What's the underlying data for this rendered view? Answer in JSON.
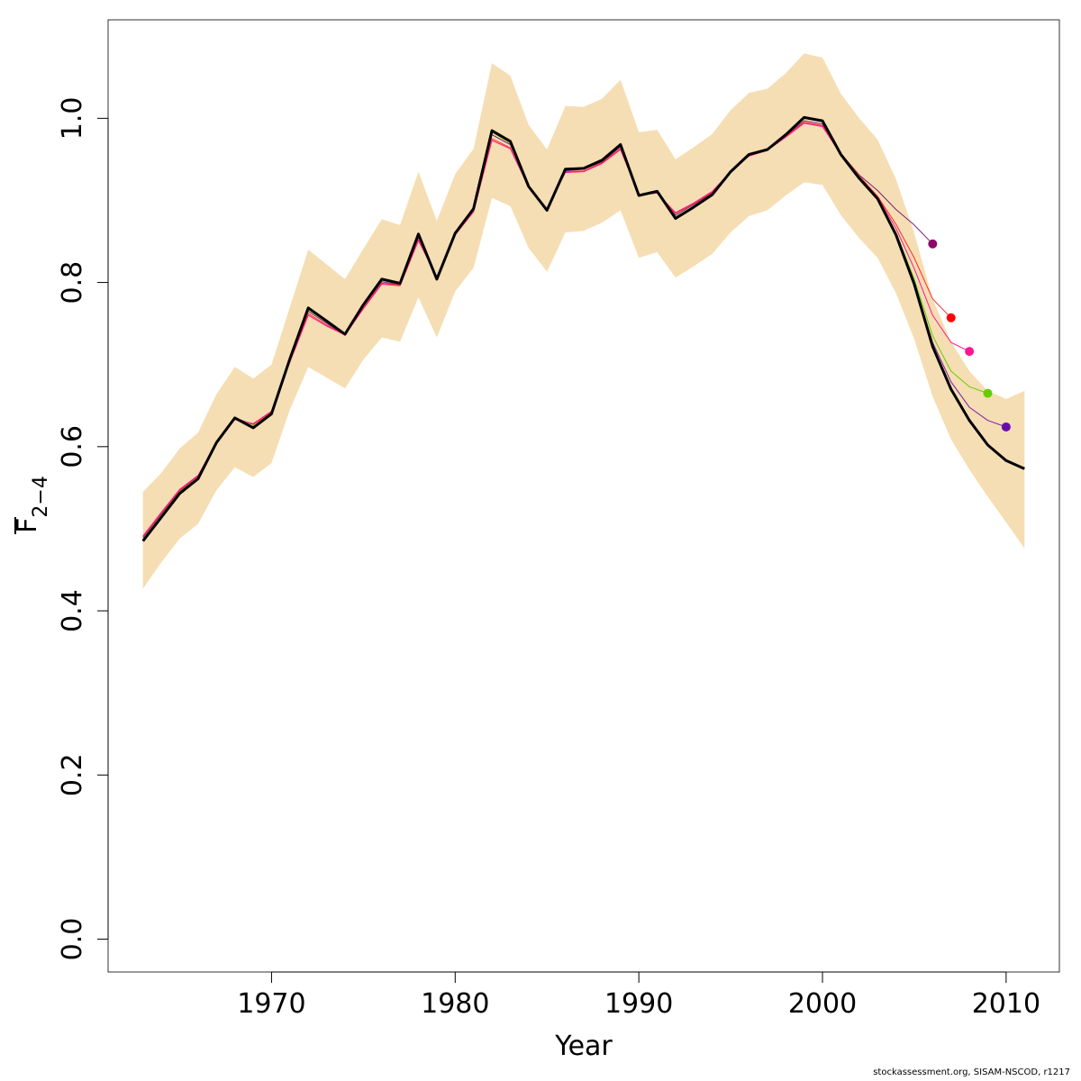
{
  "chart_data": {
    "type": "line",
    "xlabel": "Year",
    "ylabel": "F",
    "ylabel_subscript": "2−4",
    "xlim": [
      1961.1,
      2012.9
    ],
    "ylim": [
      -0.04,
      1.12
    ],
    "x_ticks": [
      1970,
      1980,
      1990,
      2000,
      2010
    ],
    "y_ticks": [
      "0.0",
      "0.2",
      "0.4",
      "0.6",
      "0.8",
      "1.0"
    ],
    "grid": false,
    "legend": "none",
    "confidence_band": {
      "color": "#F5DEB3",
      "x": [
        1963,
        1964,
        1965,
        1966,
        1967,
        1968,
        1969,
        1970,
        1971,
        1972,
        1973,
        1974,
        1975,
        1976,
        1977,
        1978,
        1979,
        1980,
        1981,
        1982,
        1983,
        1984,
        1985,
        1986,
        1987,
        1988,
        1989,
        1990,
        1991,
        1992,
        1993,
        1994,
        1995,
        1996,
        1997,
        1998,
        1999,
        2000,
        2001,
        2002,
        2003,
        2004,
        2005,
        2006,
        2007,
        2008,
        2009,
        2010,
        2011
      ],
      "upper": [
        0.545,
        0.568,
        0.598,
        0.617,
        0.664,
        0.697,
        0.683,
        0.7,
        0.77,
        0.84,
        0.822,
        0.804,
        0.841,
        0.877,
        0.87,
        0.935,
        0.875,
        0.932,
        0.963,
        1.067,
        1.052,
        0.992,
        0.962,
        1.015,
        1.014,
        1.024,
        1.047,
        0.983,
        0.986,
        0.95,
        0.965,
        0.981,
        1.01,
        1.031,
        1.036,
        1.055,
        1.079,
        1.074,
        1.03,
        1.0,
        0.974,
        0.926,
        0.86,
        0.78,
        0.728,
        0.692,
        0.668,
        0.658,
        0.668
      ],
      "lower": [
        0.427,
        0.459,
        0.488,
        0.506,
        0.547,
        0.575,
        0.563,
        0.58,
        0.645,
        0.697,
        0.684,
        0.671,
        0.706,
        0.733,
        0.728,
        0.782,
        0.733,
        0.789,
        0.818,
        0.903,
        0.893,
        0.842,
        0.813,
        0.861,
        0.863,
        0.873,
        0.888,
        0.83,
        0.837,
        0.806,
        0.82,
        0.835,
        0.861,
        0.881,
        0.888,
        0.906,
        0.922,
        0.919,
        0.882,
        0.854,
        0.83,
        0.787,
        0.731,
        0.661,
        0.609,
        0.572,
        0.539,
        0.508,
        0.476
      ]
    },
    "series": [
      {
        "color": "#000000",
        "width": 3,
        "x": [
          1963,
          1964,
          1965,
          1966,
          1967,
          1968,
          1969,
          1970,
          1971,
          1972,
          1973,
          1974,
          1975,
          1976,
          1977,
          1978,
          1979,
          1980,
          1981,
          1982,
          1983,
          1984,
          1985,
          1986,
          1987,
          1988,
          1989,
          1990,
          1991,
          1992,
          1993,
          1994,
          1995,
          1996,
          1997,
          1998,
          1999,
          2000,
          2001,
          2002,
          2003,
          2004,
          2005,
          2006,
          2007,
          2008,
          2009,
          2010,
          2011
        ],
        "values": [
          0.485,
          0.514,
          0.543,
          0.561,
          0.605,
          0.635,
          0.623,
          0.64,
          0.707,
          0.769,
          0.753,
          0.737,
          0.773,
          0.804,
          0.799,
          0.859,
          0.804,
          0.86,
          0.89,
          0.985,
          0.972,
          0.917,
          0.888,
          0.938,
          0.939,
          0.949,
          0.968,
          0.906,
          0.911,
          0.878,
          0.892,
          0.907,
          0.935,
          0.956,
          0.962,
          0.98,
          1.001,
          0.997,
          0.956,
          0.927,
          0.902,
          0.858,
          0.798,
          0.722,
          0.67,
          0.632,
          0.602,
          0.583,
          0.573
        ]
      },
      {
        "color": "#7B1F77",
        "width": 1,
        "x": [
          1963,
          1964,
          1965,
          1966,
          1967,
          1968,
          1969,
          1970,
          1971,
          1972,
          1973,
          1974,
          1975,
          1976,
          1977,
          1978,
          1979,
          1980,
          1981,
          1982,
          1983,
          1984,
          1985,
          1986,
          1987,
          1988,
          1989,
          1990,
          1991,
          1992,
          1993,
          1994,
          1995,
          1996,
          1997,
          1998,
          1999,
          2000,
          2001,
          2002,
          2003,
          2004,
          2005,
          2006
        ],
        "values": [
          0.489,
          0.518,
          0.546,
          0.564,
          0.606,
          0.635,
          0.627,
          0.642,
          0.706,
          0.765,
          0.75,
          0.736,
          0.771,
          0.801,
          0.797,
          0.855,
          0.806,
          0.859,
          0.889,
          0.98,
          0.968,
          0.917,
          0.889,
          0.936,
          0.938,
          0.947,
          0.965,
          0.907,
          0.909,
          0.882,
          0.895,
          0.909,
          0.935,
          0.955,
          0.962,
          0.979,
          0.997,
          0.993,
          0.957,
          0.931,
          0.912,
          0.889,
          0.87,
          0.847
        ],
        "endpoint": {
          "x": 2006,
          "y": 0.847,
          "color": "#8B0A6B"
        }
      },
      {
        "color": "#FF2A2A",
        "width": 1,
        "x": [
          1963,
          1964,
          1965,
          1966,
          1967,
          1968,
          1969,
          1970,
          1971,
          1972,
          1973,
          1974,
          1975,
          1976,
          1977,
          1978,
          1979,
          1980,
          1981,
          1982,
          1983,
          1984,
          1985,
          1986,
          1987,
          1988,
          1989,
          1990,
          1991,
          1992,
          1993,
          1994,
          1995,
          1996,
          1997,
          1998,
          1999,
          2000,
          2001,
          2002,
          2003,
          2004,
          2005,
          2006,
          2007
        ],
        "values": [
          0.49,
          0.519,
          0.547,
          0.564,
          0.605,
          0.634,
          0.627,
          0.642,
          0.704,
          0.762,
          0.748,
          0.736,
          0.769,
          0.799,
          0.797,
          0.852,
          0.806,
          0.858,
          0.887,
          0.975,
          0.964,
          0.916,
          0.89,
          0.935,
          0.936,
          0.946,
          0.963,
          0.907,
          0.909,
          0.884,
          0.896,
          0.91,
          0.935,
          0.955,
          0.962,
          0.978,
          0.995,
          0.991,
          0.957,
          0.93,
          0.905,
          0.871,
          0.83,
          0.78,
          0.757
        ],
        "endpoint": {
          "x": 2007,
          "y": 0.757,
          "color": "#FF0000"
        }
      },
      {
        "color": "#FF1493",
        "width": 1,
        "x": [
          1963,
          1964,
          1965,
          1966,
          1967,
          1968,
          1969,
          1970,
          1971,
          1972,
          1973,
          1974,
          1975,
          1976,
          1977,
          1978,
          1979,
          1980,
          1981,
          1982,
          1983,
          1984,
          1985,
          1986,
          1987,
          1988,
          1989,
          1990,
          1991,
          1992,
          1993,
          1994,
          1995,
          1996,
          1997,
          1998,
          1999,
          2000,
          2001,
          2002,
          2003,
          2004,
          2005,
          2006,
          2007,
          2008
        ],
        "values": [
          0.491,
          0.52,
          0.548,
          0.565,
          0.605,
          0.633,
          0.628,
          0.643,
          0.703,
          0.76,
          0.747,
          0.736,
          0.768,
          0.798,
          0.796,
          0.851,
          0.807,
          0.858,
          0.886,
          0.973,
          0.963,
          0.916,
          0.89,
          0.934,
          0.935,
          0.945,
          0.962,
          0.907,
          0.909,
          0.885,
          0.897,
          0.911,
          0.935,
          0.954,
          0.961,
          0.977,
          0.994,
          0.99,
          0.956,
          0.929,
          0.904,
          0.866,
          0.817,
          0.76,
          0.727,
          0.716
        ],
        "endpoint": {
          "x": 2008,
          "y": 0.716,
          "color": "#FF1493"
        }
      },
      {
        "color": "#66CD00",
        "width": 1,
        "x": [
          1963,
          1964,
          1965,
          1966,
          1967,
          1968,
          1969,
          1970,
          1971,
          1972,
          1973,
          1974,
          1975,
          1976,
          1977,
          1978,
          1979,
          1980,
          1981,
          1982,
          1983,
          1984,
          1985,
          1986,
          1987,
          1988,
          1989,
          1990,
          1991,
          1992,
          1993,
          1994,
          1995,
          1996,
          1997,
          1998,
          1999,
          2000,
          2001,
          2002,
          2003,
          2004,
          2005,
          2006,
          2007,
          2008,
          2009
        ],
        "values": [
          0.487,
          0.516,
          0.545,
          0.562,
          0.605,
          0.635,
          0.625,
          0.641,
          0.706,
          0.767,
          0.752,
          0.737,
          0.772,
          0.803,
          0.798,
          0.857,
          0.805,
          0.86,
          0.89,
          0.983,
          0.97,
          0.917,
          0.888,
          0.937,
          0.938,
          0.948,
          0.967,
          0.906,
          0.911,
          0.88,
          0.893,
          0.908,
          0.935,
          0.956,
          0.962,
          0.98,
          1.0,
          0.996,
          0.957,
          0.929,
          0.903,
          0.861,
          0.804,
          0.735,
          0.692,
          0.673,
          0.665
        ],
        "endpoint": {
          "x": 2009,
          "y": 0.665,
          "color": "#66CD00"
        }
      },
      {
        "color": "#7B1FA2",
        "width": 1,
        "x": [
          1963,
          1964,
          1965,
          1966,
          1967,
          1968,
          1969,
          1970,
          1971,
          1972,
          1973,
          1974,
          1975,
          1976,
          1977,
          1978,
          1979,
          1980,
          1981,
          1982,
          1983,
          1984,
          1985,
          1986,
          1987,
          1988,
          1989,
          1990,
          1991,
          1992,
          1993,
          1994,
          1995,
          1996,
          1997,
          1998,
          1999,
          2000,
          2001,
          2002,
          2003,
          2004,
          2005,
          2006,
          2007,
          2008,
          2009,
          2010
        ],
        "values": [
          0.486,
          0.515,
          0.544,
          0.562,
          0.605,
          0.635,
          0.624,
          0.64,
          0.707,
          0.768,
          0.753,
          0.737,
          0.773,
          0.804,
          0.799,
          0.858,
          0.804,
          0.86,
          0.89,
          0.984,
          0.971,
          0.917,
          0.888,
          0.938,
          0.939,
          0.949,
          0.968,
          0.906,
          0.911,
          0.879,
          0.892,
          0.907,
          0.935,
          0.956,
          0.962,
          0.98,
          1.001,
          0.997,
          0.956,
          0.928,
          0.902,
          0.859,
          0.8,
          0.727,
          0.679,
          0.648,
          0.632,
          0.624
        ],
        "endpoint": {
          "x": 2010,
          "y": 0.624,
          "color": "#6A0DAD"
        }
      }
    ]
  },
  "footer": {
    "text": "stockassessment.org, SISAM-NSCOD, r1217"
  }
}
